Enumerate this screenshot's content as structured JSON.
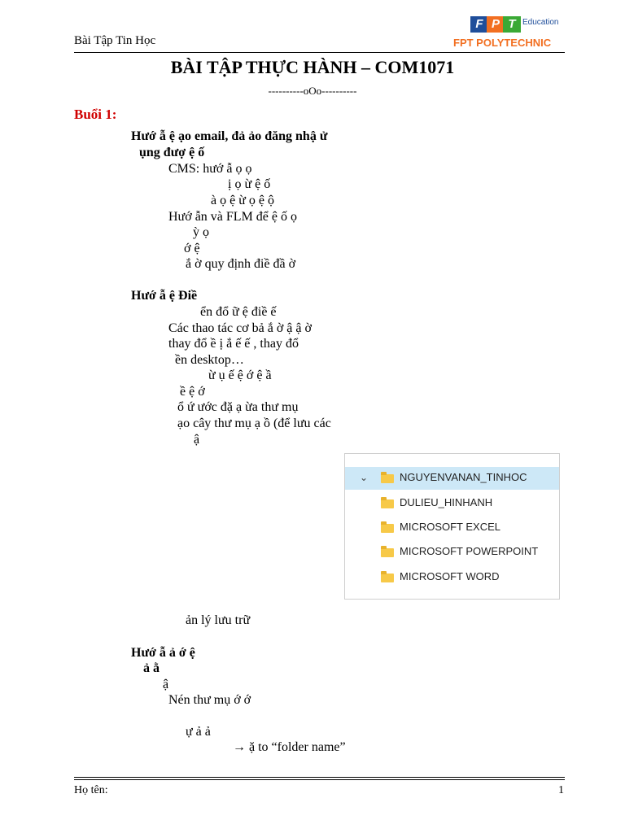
{
  "header": {
    "left": "Bài Tập Tin Học",
    "logo_letters": [
      "F",
      "P",
      "T"
    ],
    "logo_colors": [
      "#1f4e9a",
      "#f26f21",
      "#3aa935"
    ],
    "logo_text": "Education",
    "right": "FPT POLYTECHNIC"
  },
  "title": "BÀI TẬP THỰC HÀNH – COM1071",
  "divider": "----------oOo----------",
  "session": "Buổi 1:",
  "lines": [
    {
      "text": "Hướ      ẫ      ệ   ạo email, đả       ảo đăng nhậ                                   ử",
      "bold": true
    },
    {
      "text": "ụng đượ          ệ    ố",
      "bold": true
    },
    {
      "text": "CMS: hướ          ẫ       ọ           ọ",
      "bold": false
    },
    {
      "text": "ị          ọ                                  ừ    ệ      ố",
      "bold": false
    },
    {
      "text": "à    ọ    ệ     ừ          ọ     ệ      ộ",
      "bold": false
    },
    {
      "text": "Hướ         ẫn và FLM để            ệ    ố                          ọ",
      "bold": false
    },
    {
      "text": "ỳ                                   ọ",
      "bold": false
    },
    {
      "text": "ớ      ệ",
      "bold": false
    },
    {
      "text": "ắ        ờ quy định điề              đầ       ờ",
      "bold": false
    },
    {
      "text": "Hướ         ẫ      ệ Điề",
      "bold": true
    },
    {
      "text": "ển đổ                ữ          ệ điề                        ế",
      "bold": false
    },
    {
      "text": "Các thao tác cơ bả       ắ        ờ                    ậ        ậ                ờ",
      "bold": false
    },
    {
      "text": "thay đổ                ề        ị    ắ        ế                ế                    , thay đổ",
      "bold": false
    },
    {
      "text": "ền desktop…",
      "bold": false
    },
    {
      "text": "ừ    ụ                                                  ế           ệ         ớ       ệ         ầ",
      "bold": false
    },
    {
      "text": "ề                  ệ                     ớ",
      "bold": false
    },
    {
      "text": "ổ         ứ                      ước đặ              ạ                 ừa thư mụ",
      "bold": false
    },
    {
      "text": "ạo cây thư mụ           ạ    ồ                                       (để lưu các",
      "bold": false
    },
    {
      "text": "ậ",
      "bold": false
    },
    {
      "text": "ản lý lưu trữ",
      "bold": false
    },
    {
      "text": "Hướ         ẫ                 ả                                        ớ                                        ệ",
      "bold": true
    },
    {
      "text": "ả          ằ",
      "bold": true
    },
    {
      "text": "ậ",
      "bold": false
    },
    {
      "text": "Nén thư mụ                                                  ớ           ớ",
      "bold": false
    },
    {
      "text": "ự             ả                                                                                            ả",
      "bold": false
    },
    {
      "text": "→                      ặ                 to “folder name”",
      "bold": false
    }
  ],
  "folder_tree": [
    {
      "name": "NGUYENVANAN_TINHOC",
      "expanded": true,
      "selected": true
    },
    {
      "name": "DULIEU_HINHANH",
      "expanded": false,
      "selected": false
    },
    {
      "name": "MICROSOFT EXCEL",
      "expanded": false,
      "selected": false
    },
    {
      "name": "MICROSOFT POWERPOINT",
      "expanded": false,
      "selected": false
    },
    {
      "name": "MICROSOFT WORD",
      "expanded": false,
      "selected": false
    }
  ],
  "tree_icons": {
    "chevron": "chevron-down-icon",
    "folder": "folder-icon"
  },
  "footer": {
    "name_label": "Họ tên:",
    "page_number": "1"
  }
}
